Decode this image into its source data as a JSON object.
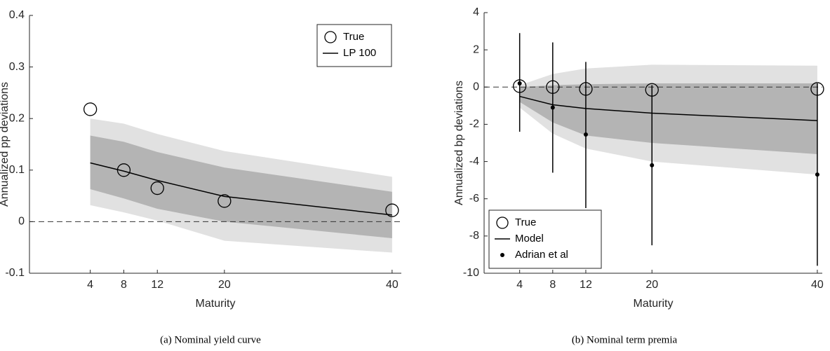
{
  "chart_data": [
    {
      "type": "line",
      "caption": "(a)  Nominal yield curve",
      "xlabel": "Maturity",
      "ylabel": "Annualized pp deviations",
      "x": [
        4,
        8,
        12,
        20,
        40
      ],
      "xlim": [
        -3.25,
        41.1
      ],
      "xticks": [
        4,
        8,
        12,
        20,
        40
      ],
      "ylim": [
        -0.1,
        0.4
      ],
      "yticks": [
        -0.1,
        0,
        0.1,
        0.2,
        0.3,
        0.4
      ],
      "zero_line": true,
      "legend": "upper right",
      "series": [
        {
          "style": "band",
          "color": "#dcdcdc",
          "upper": [
            0.2,
            0.19,
            0.17,
            0.137,
            0.087
          ],
          "lower": [
            0.032,
            0.018,
            0.002,
            -0.037,
            -0.06
          ]
        },
        {
          "style": "band",
          "color": "#ababab",
          "upper": [
            0.167,
            0.155,
            0.135,
            0.105,
            0.058
          ],
          "lower": [
            0.063,
            0.045,
            0.025,
            0.0,
            -0.032
          ]
        },
        {
          "name": "True",
          "style": "circle",
          "color": "#000000",
          "values": [
            0.218,
            0.1,
            0.065,
            0.04,
            0.022
          ]
        },
        {
          "name": "LP 100",
          "style": "line",
          "color": "#000000",
          "values": [
            0.114,
            0.098,
            0.08,
            0.049,
            0.013
          ]
        }
      ]
    },
    {
      "type": "line",
      "caption": "(b)  Nominal term premia",
      "xlabel": "Maturity",
      "ylabel": "Annualized bp deviations",
      "x": [
        4,
        8,
        12,
        20,
        40
      ],
      "xlim": [
        -0.3,
        40.6
      ],
      "xticks": [
        4,
        8,
        12,
        20,
        40
      ],
      "ylim": [
        -10,
        4
      ],
      "yticks": [
        -10,
        -8,
        -6,
        -4,
        -2,
        0,
        2,
        4
      ],
      "zero_line": true,
      "legend": "lower left",
      "series": [
        {
          "style": "band",
          "color": "#dcdcdc",
          "upper": [
            0.1,
            0.7,
            1.0,
            1.2,
            1.15
          ],
          "lower": [
            -1.1,
            -2.5,
            -3.3,
            -4.0,
            -4.7
          ]
        },
        {
          "style": "band",
          "color": "#ababab",
          "upper": [
            0.0,
            0.1,
            0.15,
            0.2,
            0.2
          ],
          "lower": [
            -0.8,
            -1.9,
            -2.6,
            -3.0,
            -3.6
          ]
        },
        {
          "name": "True",
          "style": "circle",
          "color": "#000000",
          "values": [
            0.05,
            0,
            -0.1,
            -0.15,
            -0.1
          ]
        },
        {
          "name": "Model",
          "style": "line",
          "color": "#000000",
          "values": [
            -0.5,
            -0.95,
            -1.15,
            -1.4,
            -1.8
          ]
        },
        {
          "name": "Adrian et al",
          "style": "dot",
          "color": "#000000",
          "values": [
            0.2,
            -1.1,
            -2.55,
            -4.2,
            -4.7
          ],
          "upper": [
            2.9,
            2.4,
            1.35,
            0.1,
            0.2
          ],
          "lower": [
            -2.4,
            -4.6,
            -6.5,
            -8.5,
            -9.6
          ]
        }
      ]
    }
  ]
}
